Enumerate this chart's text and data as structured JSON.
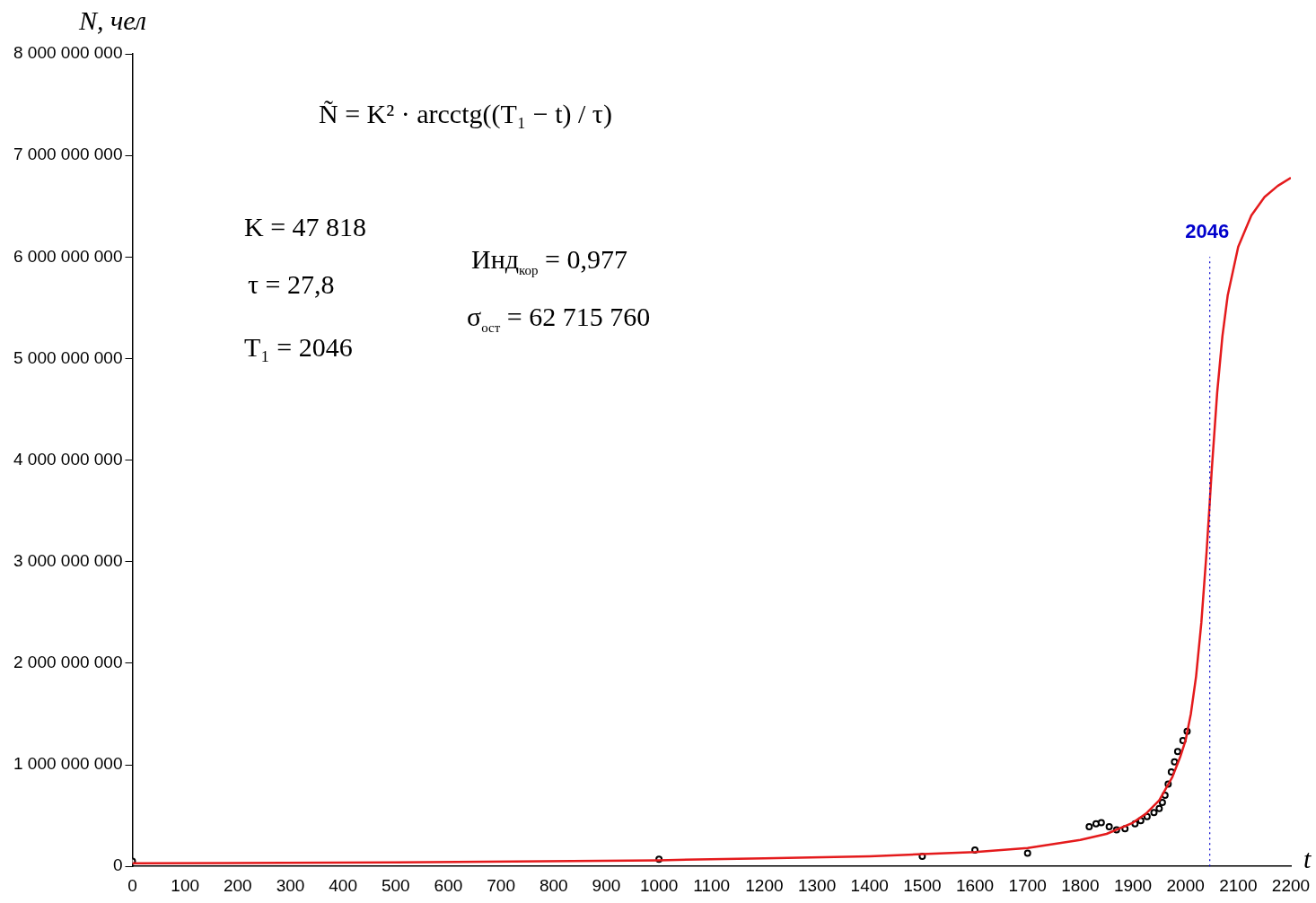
{
  "chart_data": {
    "type": "line",
    "xlabel": "t",
    "ylabel": "N, чел",
    "xlim": [
      0,
      2200
    ],
    "xticks": [
      0,
      100,
      200,
      300,
      400,
      500,
      600,
      700,
      800,
      900,
      1000,
      1100,
      1200,
      1300,
      1400,
      1500,
      1600,
      1700,
      1800,
      1900,
      2000,
      2100,
      2200
    ],
    "ylim": [
      0,
      8000000000
    ],
    "yticks": [
      {
        "value": 0,
        "label": "0"
      },
      {
        "value": 1000000000,
        "label": "1 000 000 000"
      },
      {
        "value": 2000000000,
        "label": "2 000 000 000"
      },
      {
        "value": 3000000000,
        "label": "3 000 000 000"
      },
      {
        "value": 4000000000,
        "label": "4 000 000 000"
      },
      {
        "value": 5000000000,
        "label": "5 000 000 000"
      },
      {
        "value": 6000000000,
        "label": "6 000 000 000"
      },
      {
        "value": 7000000000,
        "label": "7 000 000 000"
      },
      {
        "value": 8000000000,
        "label": "8 000 000 000"
      }
    ],
    "grid": false,
    "legend": false,
    "series": [
      {
        "color": "#e41a1c",
        "marker": "none",
        "x": [
          0,
          500,
          1000,
          1200,
          1400,
          1500,
          1600,
          1700,
          1750,
          1800,
          1850,
          1900,
          1925,
          1950,
          1975,
          1990,
          2000,
          2010,
          2020,
          2030,
          2040,
          2046,
          2050,
          2060,
          2070,
          2080,
          2100,
          2125,
          2150,
          2175,
          2200
        ],
        "values": [
          30000000,
          40000000,
          60000000,
          80000000,
          100000000,
          120000000,
          140000000,
          180000000,
          220000000,
          260000000,
          320000000,
          430000000,
          520000000,
          650000000,
          880000000,
          1080000000,
          1240000000,
          1500000000,
          1870000000,
          2400000000,
          3100000000,
          3590000000,
          3920000000,
          4660000000,
          5220000000,
          5620000000,
          6100000000,
          6410000000,
          6590000000,
          6700000000,
          6780000000
        ]
      },
      {
        "type": "scatter",
        "color": "#000000",
        "marker": "circle",
        "x": [
          0,
          1000,
          1500,
          1600,
          1700,
          1817,
          1830,
          1840,
          1855,
          1869,
          1885,
          1904,
          1915,
          1927,
          1940,
          1950,
          1956,
          1961,
          1967,
          1973,
          1979,
          1985,
          1995,
          2003
        ],
        "values": [
          50000000,
          70000000,
          100000000,
          160000000,
          130000000,
          390000000,
          420000000,
          430000000,
          390000000,
          360000000,
          370000000,
          420000000,
          450000000,
          490000000,
          530000000,
          570000000,
          630000000,
          700000000,
          810000000,
          930000000,
          1030000000,
          1130000000,
          1240000000,
          1330000000
        ]
      }
    ],
    "ref_lines": [
      {
        "axis": "x",
        "value": 2046,
        "label": "2046",
        "color": "#0000cc",
        "line_style": "dotted"
      }
    ],
    "annotations": [
      "Ñ = K² · arcctg((T₁ − t) / τ)",
      "K = 47 818",
      "τ = 27,8",
      "T₁ = 2046",
      "Инд$_{кор}$ = 0,977",
      "σ$_{ост}$ = 62 715 760"
    ]
  }
}
